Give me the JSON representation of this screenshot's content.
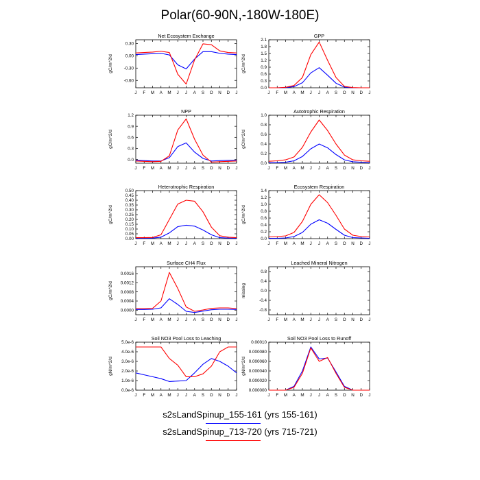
{
  "page": {
    "title": "Polar(60-90N,-180W-180E)"
  },
  "legend": {
    "entries": [
      {
        "label": "s2sLandSpinup_155-161 (yrs 155-161)",
        "color": "#0000ff"
      },
      {
        "label": "s2sLandSpinup_713-720 (yrs 715-721)",
        "color": "#ff0000"
      }
    ]
  },
  "colors": {
    "series1": "#0000ff",
    "series2": "#ff0000"
  },
  "chart_data": [
    {
      "type": "line",
      "title": "Net Ecosystem Exchange",
      "ylabel": "gC/m^2/d",
      "x": [
        "J",
        "F",
        "M",
        "A",
        "M",
        "J",
        "J",
        "A",
        "S",
        "O",
        "N",
        "D",
        "J"
      ],
      "ylim": [
        -0.78,
        0.39
      ],
      "yticks": [
        0.3,
        0.0,
        -0.3,
        -0.6
      ],
      "ytick_labels": [
        "0.30",
        "0.00",
        "-0.30",
        "-0.60"
      ],
      "series": [
        {
          "values": [
            0.03,
            0.04,
            0.05,
            0.06,
            0.02,
            -0.22,
            -0.32,
            -0.08,
            0.1,
            0.1,
            0.06,
            0.04,
            0.03
          ]
        },
        {
          "values": [
            0.07,
            0.08,
            0.09,
            0.11,
            0.08,
            -0.45,
            -0.69,
            -0.1,
            0.29,
            0.27,
            0.12,
            0.08,
            0.07
          ]
        }
      ]
    },
    {
      "type": "line",
      "title": "GPP",
      "ylabel": "gC/m^2/d",
      "x": [
        "J",
        "F",
        "M",
        "A",
        "M",
        "J",
        "J",
        "A",
        "S",
        "O",
        "N",
        "D",
        "J"
      ],
      "ylim": [
        0.0,
        2.1
      ],
      "yticks": [
        0.0,
        0.3,
        0.6,
        0.9,
        1.2,
        1.5,
        1.8,
        2.1
      ],
      "ytick_labels": [
        "0.0",
        "0.3",
        "0.6",
        "0.9",
        "1.2",
        "1.5",
        "1.8",
        "2.1"
      ],
      "series": [
        {
          "values": [
            0.0,
            0.0,
            0.01,
            0.05,
            0.22,
            0.65,
            0.88,
            0.55,
            0.2,
            0.03,
            0.0,
            0.0,
            0.0
          ]
        },
        {
          "values": [
            0.0,
            0.0,
            0.02,
            0.1,
            0.45,
            1.45,
            2.0,
            1.2,
            0.45,
            0.06,
            0.01,
            0.0,
            0.0
          ]
        }
      ]
    },
    {
      "type": "line",
      "title": "NPP",
      "ylabel": "gC/m^2/d",
      "x": [
        "J",
        "F",
        "M",
        "A",
        "M",
        "J",
        "J",
        "A",
        "S",
        "O",
        "N",
        "D",
        "J"
      ],
      "ylim": [
        -0.1,
        1.2
      ],
      "yticks": [
        0.0,
        0.3,
        0.6,
        0.9,
        1.2
      ],
      "ytick_labels": [
        "0.0",
        "0.3",
        "0.6",
        "0.9",
        "1.2"
      ],
      "series": [
        {
          "values": [
            -0.02,
            -0.03,
            -0.04,
            -0.04,
            0.05,
            0.35,
            0.45,
            0.2,
            0.03,
            -0.04,
            -0.03,
            -0.02,
            -0.02
          ]
        },
        {
          "values": [
            -0.04,
            -0.05,
            -0.06,
            -0.05,
            0.1,
            0.8,
            1.1,
            0.55,
            0.12,
            -0.07,
            -0.06,
            -0.05,
            -0.04
          ]
        }
      ]
    },
    {
      "type": "line",
      "title": "Autotrophic Respiration",
      "ylabel": "gC/m^2/d",
      "x": [
        "J",
        "F",
        "M",
        "A",
        "M",
        "J",
        "J",
        "A",
        "S",
        "O",
        "N",
        "D",
        "J"
      ],
      "ylim": [
        0.0,
        1.0
      ],
      "yticks": [
        0.0,
        0.2,
        0.4,
        0.6,
        0.8,
        1.0
      ],
      "ytick_labels": [
        "0.0",
        "0.2",
        "0.4",
        "0.6",
        "0.8",
        "1.0"
      ],
      "series": [
        {
          "values": [
            0.01,
            0.01,
            0.02,
            0.05,
            0.14,
            0.3,
            0.4,
            0.32,
            0.18,
            0.07,
            0.03,
            0.02,
            0.01
          ]
        },
        {
          "values": [
            0.04,
            0.05,
            0.07,
            0.13,
            0.33,
            0.65,
            0.9,
            0.68,
            0.4,
            0.17,
            0.07,
            0.05,
            0.04
          ]
        }
      ]
    },
    {
      "type": "line",
      "title": "Heterotrophic Respiration",
      "ylabel": "gC/m^2/d",
      "x": [
        "J",
        "F",
        "M",
        "A",
        "M",
        "J",
        "J",
        "A",
        "S",
        "O",
        "N",
        "D",
        "J"
      ],
      "ylim": [
        0.0,
        0.5
      ],
      "yticks": [
        0.0,
        0.05,
        0.1,
        0.15,
        0.2,
        0.25,
        0.3,
        0.35,
        0.4,
        0.45,
        0.5
      ],
      "ytick_labels": [
        "0.00",
        "0.05",
        "0.10",
        "0.15",
        "0.20",
        "0.25",
        "0.30",
        "0.35",
        "0.40",
        "0.45",
        "0.50"
      ],
      "series": [
        {
          "values": [
            0.005,
            0.005,
            0.006,
            0.015,
            0.06,
            0.125,
            0.14,
            0.13,
            0.09,
            0.04,
            0.01,
            0.006,
            0.005
          ]
        },
        {
          "values": [
            0.01,
            0.01,
            0.012,
            0.04,
            0.2,
            0.36,
            0.4,
            0.39,
            0.28,
            0.12,
            0.03,
            0.015,
            0.01
          ]
        }
      ]
    },
    {
      "type": "line",
      "title": "Ecosystem Respiration",
      "ylabel": "gC/m^2/d",
      "x": [
        "J",
        "F",
        "M",
        "A",
        "M",
        "J",
        "J",
        "A",
        "S",
        "O",
        "N",
        "D",
        "J"
      ],
      "ylim": [
        0.0,
        1.4
      ],
      "yticks": [
        0.0,
        0.2,
        0.4,
        0.6,
        0.8,
        1.0,
        1.2,
        1.4
      ],
      "ytick_labels": [
        "0.0",
        "0.2",
        "0.4",
        "0.6",
        "0.8",
        "1.0",
        "1.2",
        "1.4"
      ],
      "series": [
        {
          "values": [
            0.01,
            0.01,
            0.02,
            0.06,
            0.18,
            0.42,
            0.55,
            0.45,
            0.27,
            0.1,
            0.03,
            0.02,
            0.01
          ]
        },
        {
          "values": [
            0.05,
            0.06,
            0.08,
            0.18,
            0.5,
            1.0,
            1.28,
            1.05,
            0.68,
            0.28,
            0.1,
            0.06,
            0.05
          ]
        }
      ]
    },
    {
      "type": "line",
      "title": "Surface CH4 Flux",
      "ylabel": "gC/m^2/d",
      "x": [
        "J",
        "F",
        "M",
        "A",
        "M",
        "J",
        "J",
        "A",
        "S",
        "O",
        "N",
        "D",
        "J"
      ],
      "ylim": [
        -0.0002,
        0.0019
      ],
      "yticks": [
        0.0,
        0.0004,
        0.0008,
        0.0012,
        0.0016
      ],
      "ytick_labels": [
        "0.0000",
        "0.0004",
        "0.0008",
        "0.0012",
        "0.0016"
      ],
      "series": [
        {
          "values": [
            3e-05,
            3e-05,
            4e-05,
            0.0001,
            0.0005,
            0.00025,
            -5e-05,
            -0.0001,
            -4e-05,
            2e-05,
            4e-05,
            4e-05,
            3e-05
          ]
        },
        {
          "values": [
            7e-05,
            7e-05,
            8e-05,
            0.0004,
            0.00165,
            0.00095,
            0.00014,
            -5e-05,
            1e-05,
            8e-05,
            0.0001,
            0.0001,
            7e-05
          ]
        }
      ]
    },
    {
      "type": "line",
      "title": "Leached Mineral Nitrogen",
      "ylabel": "missing",
      "x": [
        "J",
        "F",
        "M",
        "A",
        "M",
        "J",
        "J",
        "A",
        "S",
        "O",
        "N",
        "D",
        "J"
      ],
      "ylim": [
        -1.0,
        1.0
      ],
      "yticks": [
        -0.8,
        -0.4,
        0.0,
        0.4,
        0.8
      ],
      "ytick_labels": [
        "-0.8",
        "-0.4",
        "0.0",
        "0.4",
        "0.8"
      ],
      "series": []
    },
    {
      "type": "line",
      "title": "Soil NO3 Pool Loss to Leaching",
      "ylabel": "gN/m^2/d",
      "x": [
        "J",
        "F",
        "M",
        "A",
        "M",
        "J",
        "J",
        "A",
        "S",
        "O",
        "N",
        "D",
        "J"
      ],
      "ylim": [
        0.0,
        5e-06
      ],
      "yticks": [
        0.0,
        1e-06,
        2e-06,
        3e-06,
        4e-06,
        5e-06
      ],
      "ytick_labels": [
        "0.0e-6",
        "1.0e-6",
        "2.0e-6",
        "3.0e-6",
        "4.0e-6",
        "5.0e-6"
      ],
      "series": [
        {
          "values": [
            1.8e-06,
            1.6e-06,
            1.4e-06,
            1.2e-06,
            9e-07,
            9.5e-07,
            1e-06,
            1.8e-06,
            2.7e-06,
            3.3e-06,
            3e-06,
            2.5e-06,
            1.8e-06
          ]
        },
        {
          "values": [
            4.5e-06,
            4.5e-06,
            4.5e-06,
            4.5e-06,
            3.3e-06,
            2.6e-06,
            1.4e-06,
            1.4e-06,
            1.7e-06,
            2.5e-06,
            4e-06,
            4.5e-06,
            4.5e-06
          ]
        }
      ]
    },
    {
      "type": "line",
      "title": "Soil NO3 Pool Loss to Runoff",
      "ylabel": "gN/m^2/d",
      "x": [
        "J",
        "F",
        "M",
        "A",
        "M",
        "J",
        "J",
        "A",
        "S",
        "O",
        "N",
        "D",
        "J"
      ],
      "ylim": [
        0.0,
        0.0001
      ],
      "yticks": [
        0.0,
        2e-05,
        4e-05,
        6e-05,
        8e-05,
        0.0001
      ],
      "ytick_labels": [
        "0.000000",
        "0.000020",
        "0.000040",
        "0.000060",
        "0.000080",
        "0.00010"
      ],
      "series": [
        {
          "values": [
            0.0,
            0.0,
            0.0,
            8e-06,
            4e-05,
            9e-05,
            6.5e-05,
            6.7e-05,
            3.8e-05,
            8e-06,
            0.0,
            0.0,
            0.0
          ]
        },
        {
          "values": [
            0.0,
            0.0,
            0.0,
            6e-06,
            3.5e-05,
            8.8e-05,
            6e-05,
            6.8e-05,
            3.5e-05,
            6e-06,
            0.0,
            0.0,
            0.0
          ]
        }
      ]
    }
  ]
}
